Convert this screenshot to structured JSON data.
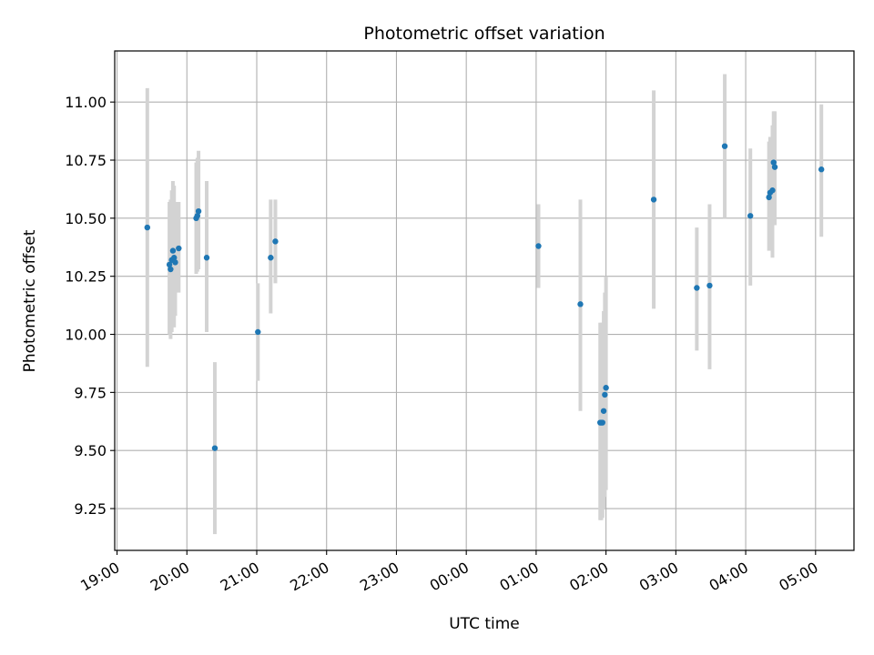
{
  "chart_data": {
    "type": "scatter",
    "title": "Photometric offset variation",
    "xlabel": "UTC time",
    "ylabel": "Photometric offset",
    "x_ticks": [
      "19:00",
      "20:00",
      "21:00",
      "22:00",
      "23:00",
      "00:00",
      "01:00",
      "02:00",
      "03:00",
      "04:00",
      "05:00"
    ],
    "y_ticks": [
      "9.25",
      "9.50",
      "9.75",
      "10.00",
      "10.25",
      "10.50",
      "10.75",
      "11.00"
    ],
    "xlim": [
      "18:58",
      "05:33"
    ],
    "ylim": [
      9.07,
      11.22
    ],
    "grid": true,
    "colors": {
      "point": "#1f77b4",
      "errorbar": "#d3d3d3",
      "grid": "#b0b0b0"
    },
    "points": [
      {
        "t": "19:26",
        "y": 10.46,
        "lo": 9.86,
        "hi": 11.06
      },
      {
        "t": "19:45",
        "y": 10.3,
        "lo": 10.0,
        "hi": 10.57
      },
      {
        "t": "19:46",
        "y": 10.28,
        "lo": 9.98,
        "hi": 10.58
      },
      {
        "t": "19:47",
        "y": 10.32,
        "lo": 10.01,
        "hi": 10.62
      },
      {
        "t": "19:48",
        "y": 10.36,
        "lo": 10.05,
        "hi": 10.66
      },
      {
        "t": "19:49",
        "y": 10.33,
        "lo": 10.03,
        "hi": 10.64
      },
      {
        "t": "19:50",
        "y": 10.31,
        "lo": 10.08,
        "hi": 10.57
      },
      {
        "t": "19:53",
        "y": 10.37,
        "lo": 10.18,
        "hi": 10.57
      },
      {
        "t": "20:08",
        "y": 10.5,
        "lo": 10.26,
        "hi": 10.74
      },
      {
        "t": "20:09",
        "y": 10.51,
        "lo": 10.27,
        "hi": 10.76
      },
      {
        "t": "20:10",
        "y": 10.53,
        "lo": 10.28,
        "hi": 10.79
      },
      {
        "t": "20:17",
        "y": 10.33,
        "lo": 10.01,
        "hi": 10.66
      },
      {
        "t": "20:24",
        "y": 9.51,
        "lo": 9.14,
        "hi": 9.88
      },
      {
        "t": "21:01",
        "y": 10.01,
        "lo": 9.8,
        "hi": 10.22
      },
      {
        "t": "21:12",
        "y": 10.33,
        "lo": 10.09,
        "hi": 10.58
      },
      {
        "t": "21:16",
        "y": 10.4,
        "lo": 10.22,
        "hi": 10.58
      },
      {
        "t": "01:02",
        "y": 10.38,
        "lo": 10.2,
        "hi": 10.56
      },
      {
        "t": "01:38",
        "y": 10.13,
        "lo": 9.67,
        "hi": 10.58
      },
      {
        "t": "01:55",
        "y": 9.62,
        "lo": 9.2,
        "hi": 10.05
      },
      {
        "t": "01:56",
        "y": 9.62,
        "lo": 9.2,
        "hi": 10.05
      },
      {
        "t": "01:57",
        "y": 9.62,
        "lo": 9.21,
        "hi": 10.05
      },
      {
        "t": "01:58",
        "y": 9.67,
        "lo": 9.25,
        "hi": 10.1
      },
      {
        "t": "01:59",
        "y": 9.74,
        "lo": 9.3,
        "hi": 10.18
      },
      {
        "t": "02:00",
        "y": 9.77,
        "lo": 9.33,
        "hi": 10.25
      },
      {
        "t": "02:41",
        "y": 10.58,
        "lo": 10.11,
        "hi": 11.05
      },
      {
        "t": "03:18",
        "y": 10.2,
        "lo": 9.93,
        "hi": 10.46
      },
      {
        "t": "03:29",
        "y": 10.21,
        "lo": 9.85,
        "hi": 10.56
      },
      {
        "t": "03:42",
        "y": 10.81,
        "lo": 10.5,
        "hi": 11.12
      },
      {
        "t": "04:04",
        "y": 10.51,
        "lo": 10.21,
        "hi": 10.8
      },
      {
        "t": "04:20",
        "y": 10.59,
        "lo": 10.36,
        "hi": 10.83
      },
      {
        "t": "04:21",
        "y": 10.61,
        "lo": 10.38,
        "hi": 10.85
      },
      {
        "t": "04:23",
        "y": 10.62,
        "lo": 10.33,
        "hi": 10.9
      },
      {
        "t": "04:24",
        "y": 10.74,
        "lo": 10.5,
        "hi": 10.96
      },
      {
        "t": "04:25",
        "y": 10.72,
        "lo": 10.47,
        "hi": 10.96
      },
      {
        "t": "05:05",
        "y": 10.71,
        "lo": 10.42,
        "hi": 10.99
      }
    ]
  }
}
